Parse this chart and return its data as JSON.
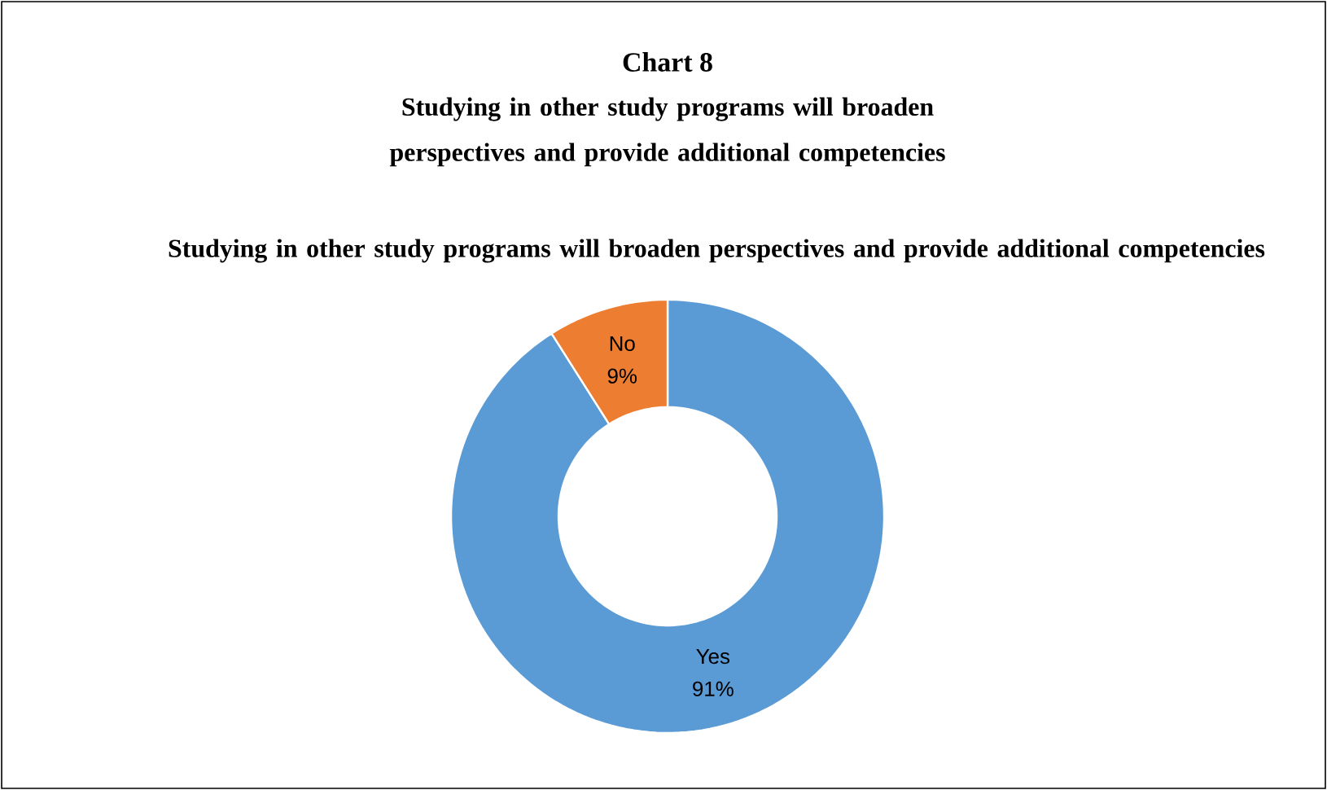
{
  "chart_data": {
    "type": "donut",
    "title": "Chart 8",
    "subtitle": "Studying in other study programs will broaden perspectives and provide additional competencies",
    "annotations": [
      "Studying in other study programs will broaden perspectives and provide additional competencies"
    ],
    "categories": [
      "Yes",
      "No"
    ],
    "values": [
      91,
      9
    ],
    "colors": [
      "#5b9bd5",
      "#ed7d31"
    ],
    "value_labels": [
      "91%",
      "9%"
    ]
  }
}
